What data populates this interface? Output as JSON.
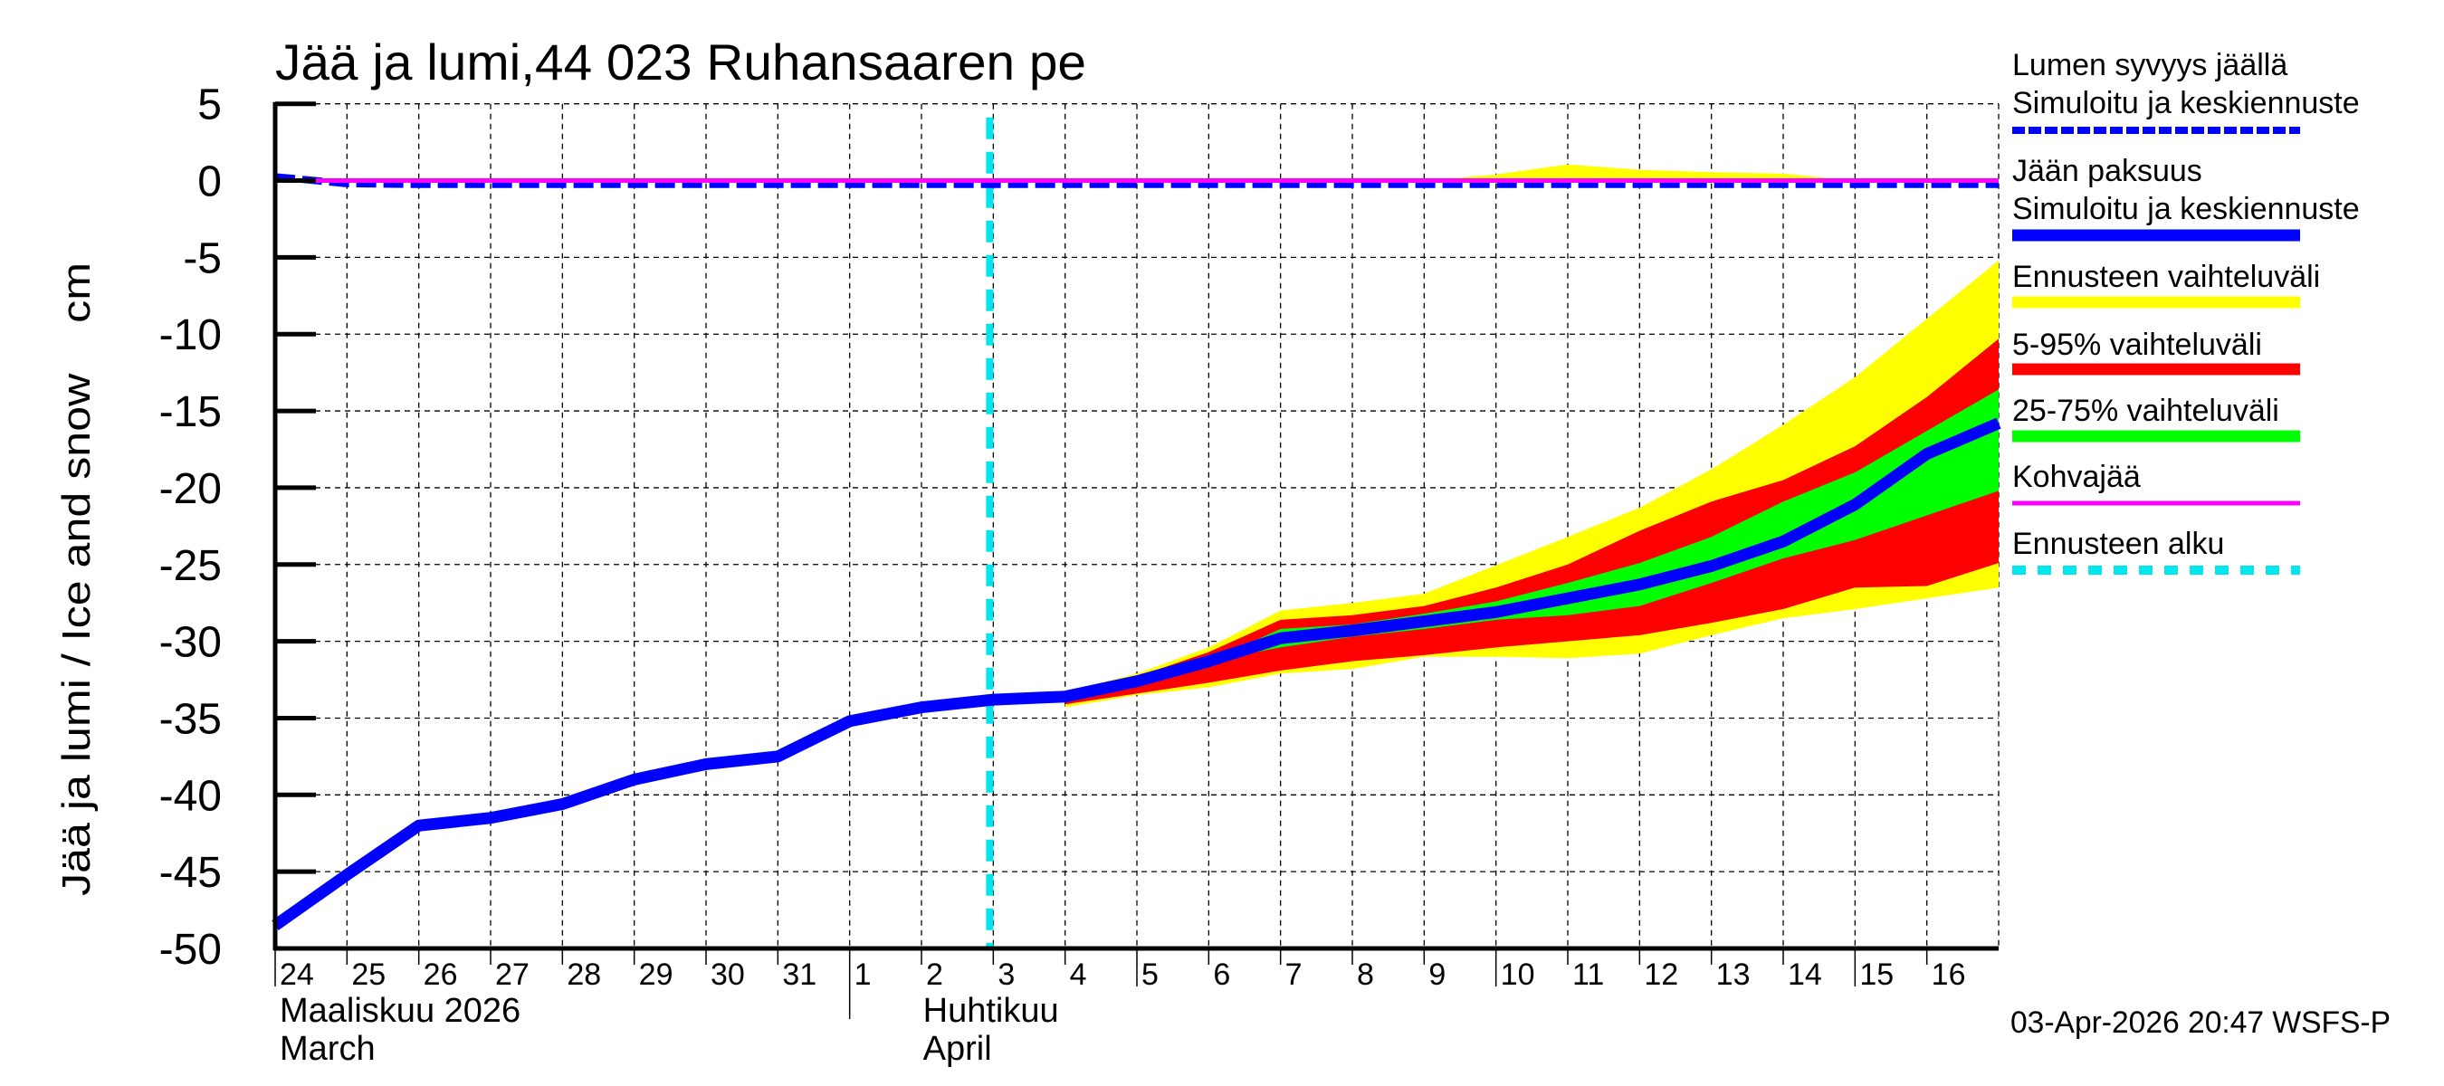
{
  "chart_data": {
    "type": "area",
    "title": "Jää ja lumi,44 023 Ruhansaaren pe",
    "ylabel": "Jää ja lumi / Ice and snow    cm",
    "xlabel": "",
    "ylim": [
      -50,
      5
    ],
    "yticks": [
      5,
      0,
      -5,
      -10,
      -15,
      -20,
      -25,
      -30,
      -35,
      -40,
      -45,
      -50
    ],
    "grid": true,
    "legend_position": "right",
    "x_day_labels": [
      "24",
      "25",
      "26",
      "27",
      "28",
      "29",
      "30",
      "31",
      "1",
      "2",
      "3",
      "4",
      "5",
      "6",
      "7",
      "8",
      "9",
      "10",
      "11",
      "12",
      "13",
      "14",
      "15",
      "16"
    ],
    "month_labels": [
      {
        "fi": "Maaliskuu 2026",
        "en": "March",
        "start_index": 0
      },
      {
        "fi": "Huhtikuu",
        "en": "April",
        "start_index": 8
      }
    ],
    "x": [
      "2026-03-24",
      "2026-03-25",
      "2026-03-26",
      "2026-03-27",
      "2026-03-28",
      "2026-03-29",
      "2026-03-30",
      "2026-03-31",
      "2026-04-01",
      "2026-04-02",
      "2026-04-03",
      "2026-04-04",
      "2026-04-05",
      "2026-04-06",
      "2026-04-07",
      "2026-04-08",
      "2026-04-09",
      "2026-04-10",
      "2026-04-11",
      "2026-04-12",
      "2026-04-13",
      "2026-04-14",
      "2026-04-15",
      "2026-04-16",
      "2026-04-17"
    ],
    "forecast_start_index": 9.95,
    "series": [
      {
        "name": "Jään paksuus – Simuloitu ja keskiennuste",
        "kind": "line",
        "color": "#0000ff",
        "values": [
          -48.5,
          -45.2,
          -42.0,
          -41.5,
          -40.6,
          -39.0,
          -38.0,
          -37.5,
          -35.2,
          -34.3,
          -33.8,
          -33.6,
          -32.6,
          -31.3,
          -29.8,
          -29.3,
          -28.7,
          -28.1,
          -27.2,
          -26.3,
          -25.1,
          -23.5,
          -21.1,
          -17.8,
          -15.8
        ]
      },
      {
        "name": "Lumen syvyys jäällä – Simuloitu ja keskiennuste",
        "kind": "dashed-line",
        "color": "#0000ff",
        "values": [
          0.25,
          -0.2,
          -0.25,
          -0.25,
          -0.25,
          -0.25,
          -0.25,
          -0.25,
          -0.25,
          -0.25,
          -0.25,
          -0.25,
          -0.25,
          -0.25,
          -0.25,
          -0.25,
          -0.25,
          -0.25,
          -0.25,
          -0.25,
          -0.25,
          -0.25,
          -0.25,
          -0.25,
          -0.25
        ]
      },
      {
        "name": "Kohvajää",
        "kind": "line",
        "color": "#ff00ff",
        "values": [
          0,
          0,
          0,
          0,
          0,
          0,
          0,
          0,
          0,
          0,
          0,
          0,
          0,
          0,
          0,
          0,
          0,
          0,
          0,
          0,
          0,
          0,
          0,
          0,
          0
        ]
      },
      {
        "name": "Ennusteen vaihteluväli (snow upper)",
        "kind": "band",
        "color": "#ffff00",
        "start_index": 14,
        "upper": [
          0,
          0,
          0,
          0.4,
          1.05,
          0.7,
          0.55,
          0.45,
          0,
          0,
          0
        ],
        "lower": [
          0,
          0,
          0,
          0,
          0,
          0,
          0,
          0,
          0,
          0,
          0
        ]
      },
      {
        "name": "Ennusteen vaihteluväli",
        "kind": "band",
        "color": "#ffff00",
        "start_index": 11,
        "upper": [
          -33.3,
          -32.1,
          -30.4,
          -28.0,
          -27.5,
          -26.9,
          -25.05,
          -23.2,
          -21.3,
          -18.8,
          -15.9,
          -12.8,
          -9.0,
          -5.2
        ],
        "lower": [
          -34.3,
          -33.5,
          -33.0,
          -32.1,
          -31.8,
          -31.0,
          -31.0,
          -31.1,
          -30.8,
          -29.6,
          -28.5,
          -27.9,
          -27.2,
          -26.5
        ]
      },
      {
        "name": "5-95% vaihteluväli",
        "kind": "band",
        "color": "#ff0000",
        "start_index": 11,
        "upper": [
          -33.4,
          -32.3,
          -30.7,
          -28.6,
          -28.3,
          -27.7,
          -26.5,
          -25.0,
          -22.8,
          -20.9,
          -19.5,
          -17.3,
          -14.1,
          -10.3
        ],
        "lower": [
          -34.1,
          -33.4,
          -32.7,
          -31.9,
          -31.3,
          -30.9,
          -30.4,
          -30.0,
          -29.6,
          -28.8,
          -27.9,
          -26.5,
          -26.4,
          -24.9
        ]
      },
      {
        "name": "25-75% vaihteluväli",
        "kind": "band",
        "color": "#00ff00",
        "start_index": 11,
        "upper": [
          -33.6,
          -32.6,
          -31.3,
          -29.2,
          -28.9,
          -28.2,
          -27.4,
          -26.2,
          -24.9,
          -23.2,
          -20.9,
          -19.0,
          -16.3,
          -13.6
        ],
        "lower": [
          -33.6,
          -32.6,
          -31.3,
          -30.4,
          -29.7,
          -29.2,
          -28.6,
          -28.3,
          -27.7,
          -26.2,
          -24.6,
          -23.4,
          -21.8,
          -20.2
        ]
      },
      {
        "name": "Ennusteen alku",
        "kind": "vline",
        "color": "#00e5ee"
      }
    ]
  },
  "legend": {
    "items": [
      {
        "line1": "Lumen syvyys jäällä",
        "line2": "Simuloitu ja keskiennuste",
        "color": "#0000ff",
        "style": "dotted-thick"
      },
      {
        "line1": "Jään paksuus",
        "line2": "Simuloitu ja keskiennuste",
        "color": "#0000ff",
        "style": "solid-thick"
      },
      {
        "line1": "Ennusteen vaihteluväli",
        "line2": "",
        "color": "#ffff00",
        "style": "solid-thick"
      },
      {
        "line1": "5-95% vaihteluväli",
        "line2": "",
        "color": "#ff0000",
        "style": "solid-thick"
      },
      {
        "line1": "25-75% vaihteluväli",
        "line2": "",
        "color": "#00ff00",
        "style": "solid-thick"
      },
      {
        "line1": "Kohvajää",
        "line2": "",
        "color": "#ff00ff",
        "style": "solid-thin"
      },
      {
        "line1": "Ennusteen alku",
        "line2": "",
        "color": "#00e5ee",
        "style": "dashed"
      }
    ]
  },
  "footer": {
    "timestamp": "03-Apr-2026 20:47 WSFS-P"
  }
}
